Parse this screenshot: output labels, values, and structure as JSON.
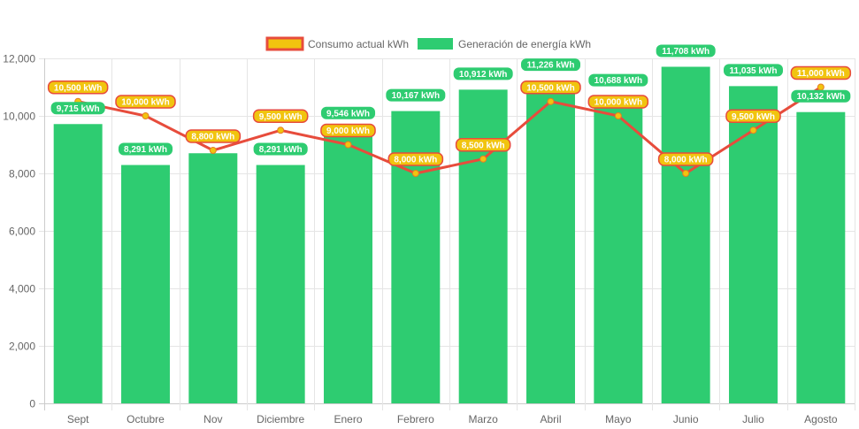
{
  "chart_data": {
    "type": "bar",
    "title": "",
    "xlabel": "",
    "ylabel": "",
    "ylim": [
      0,
      12000
    ],
    "yticks": [
      0,
      2000,
      4000,
      6000,
      8000,
      10000,
      12000
    ],
    "ytick_labels": [
      "0",
      "2,000",
      "4,000",
      "6,000",
      "8,000",
      "10,000",
      "12,000"
    ],
    "grid": true,
    "legend_position": "top-center",
    "categories": [
      "Sept",
      "Octubre",
      "Nov",
      "Diciembre",
      "Enero",
      "Febrero",
      "Marzo",
      "Abril",
      "Mayo",
      "Junio",
      "Julio",
      "Agosto"
    ],
    "series": [
      {
        "name": "Consumo actual kWh",
        "type": "line",
        "color": "#e74c3c",
        "point_color": "#f1c40f",
        "values": [
          10500,
          10000,
          8800,
          9500,
          9000,
          8000,
          8500,
          10500,
          10000,
          8000,
          9500,
          11000
        ],
        "labels": [
          "10,500 kWh",
          "10,000 kWh",
          "8,800 kWh",
          "9,500 kWh",
          "9,000 kWh",
          "8,000 kWh",
          "8,500 kWh",
          "10,500 kWh",
          "10,000 kWh",
          "8,000 kWh",
          "9,500 kWh",
          "11,000 kWh"
        ]
      },
      {
        "name": "Generación de energía kWh",
        "type": "bar",
        "color": "#2ecc71",
        "values": [
          9715,
          8291,
          8700,
          8291,
          9546,
          10167,
          10912,
          11226,
          10688,
          11708,
          11035,
          10132
        ],
        "labels": [
          "9,715 kWh",
          "8,291 kWh",
          "",
          "8,291 kWh",
          "9,546 kWh",
          "10,167 kWh",
          "10,912 kWh",
          "11,226 kWh",
          "10,688 kWh",
          "11,708 kWh",
          "11,035 kWh",
          "10,132 kWh"
        ]
      }
    ]
  }
}
